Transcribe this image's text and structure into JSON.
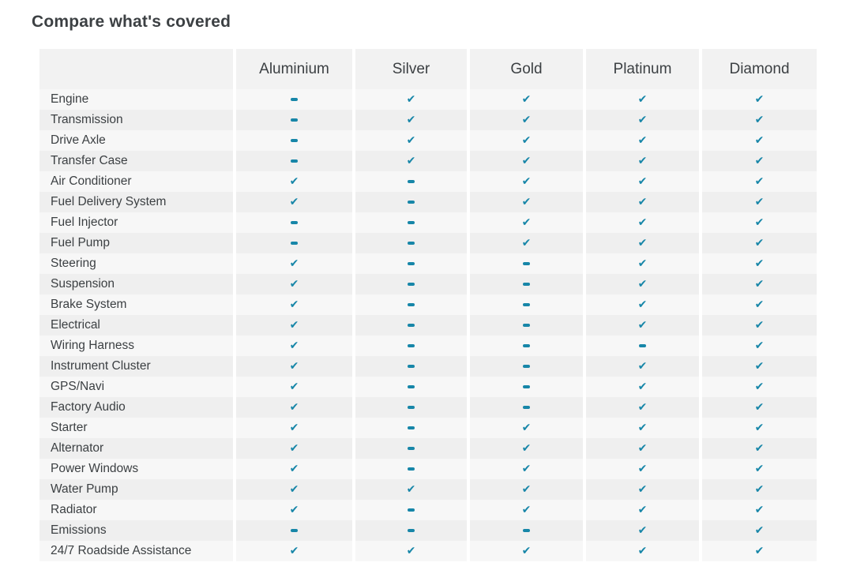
{
  "page": {
    "title": "Compare what's covered"
  },
  "colors": {
    "accent_check": "#1786a8",
    "row_light": "#f7f7f7",
    "row_dark": "#efefef",
    "header_bg": "#f2f2f2",
    "text": "#3c4043"
  },
  "icons": {
    "check": {
      "name": "check-icon",
      "glyph": "✔"
    },
    "dash": {
      "name": "dash-icon",
      "glyph": "–"
    }
  },
  "table": {
    "columns": [
      "",
      "Aluminium",
      "Silver",
      "Gold",
      "Platinum",
      "Diamond"
    ],
    "rows": [
      {
        "label": "Engine",
        "values": [
          "dash",
          "check",
          "check",
          "check",
          "check"
        ]
      },
      {
        "label": "Transmission",
        "values": [
          "dash",
          "check",
          "check",
          "check",
          "check"
        ]
      },
      {
        "label": "Drive Axle",
        "values": [
          "dash",
          "check",
          "check",
          "check",
          "check"
        ]
      },
      {
        "label": "Transfer Case",
        "values": [
          "dash",
          "check",
          "check",
          "check",
          "check"
        ]
      },
      {
        "label": "Air Conditioner",
        "values": [
          "check",
          "dash",
          "check",
          "check",
          "check"
        ]
      },
      {
        "label": "Fuel Delivery System",
        "values": [
          "check",
          "dash",
          "check",
          "check",
          "check"
        ]
      },
      {
        "label": "Fuel Injector",
        "values": [
          "dash",
          "dash",
          "check",
          "check",
          "check"
        ]
      },
      {
        "label": "Fuel Pump",
        "values": [
          "dash",
          "dash",
          "check",
          "check",
          "check"
        ]
      },
      {
        "label": "Steering",
        "values": [
          "check",
          "dash",
          "dash",
          "check",
          "check"
        ]
      },
      {
        "label": "Suspension",
        "values": [
          "check",
          "dash",
          "dash",
          "check",
          "check"
        ]
      },
      {
        "label": "Brake System",
        "values": [
          "check",
          "dash",
          "dash",
          "check",
          "check"
        ]
      },
      {
        "label": "Electrical",
        "values": [
          "check",
          "dash",
          "dash",
          "check",
          "check"
        ]
      },
      {
        "label": "Wiring Harness",
        "values": [
          "check",
          "dash",
          "dash",
          "dash",
          "check"
        ]
      },
      {
        "label": "Instrument Cluster",
        "values": [
          "check",
          "dash",
          "dash",
          "check",
          "check"
        ]
      },
      {
        "label": "GPS/Navi",
        "values": [
          "check",
          "dash",
          "dash",
          "check",
          "check"
        ]
      },
      {
        "label": "Factory Audio",
        "values": [
          "check",
          "dash",
          "dash",
          "check",
          "check"
        ]
      },
      {
        "label": "Starter",
        "values": [
          "check",
          "dash",
          "check",
          "check",
          "check"
        ]
      },
      {
        "label": "Alternator",
        "values": [
          "check",
          "dash",
          "check",
          "check",
          "check"
        ]
      },
      {
        "label": "Power Windows",
        "values": [
          "check",
          "dash",
          "check",
          "check",
          "check"
        ]
      },
      {
        "label": "Water Pump",
        "values": [
          "check",
          "check",
          "check",
          "check",
          "check"
        ]
      },
      {
        "label": "Radiator",
        "values": [
          "check",
          "dash",
          "check",
          "check",
          "check"
        ]
      },
      {
        "label": "Emissions",
        "values": [
          "dash",
          "dash",
          "dash",
          "check",
          "check"
        ]
      },
      {
        "label": "24/7 Roadside Assistance",
        "values": [
          "check",
          "check",
          "check",
          "check",
          "check"
        ]
      }
    ]
  }
}
